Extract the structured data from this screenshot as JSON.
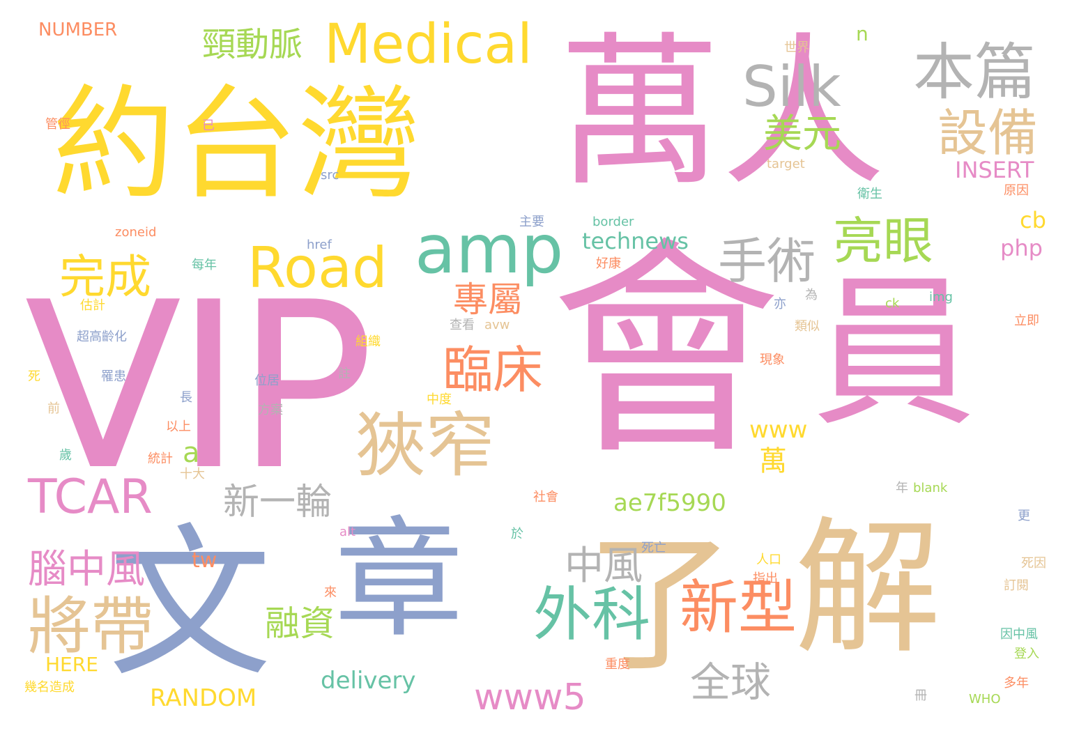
{
  "palette": {
    "pink": "#e68bc6",
    "yellow": "#ffd92f",
    "tan": "#e5c494",
    "blue": "#8da0cb",
    "green": "#66c2a5",
    "grey": "#b3b3b3",
    "orange": "#fc8d62",
    "lime": "#a6d854"
  },
  "words": {
    "vip": "VIP",
    "hui": "會",
    "yuan": "員",
    "wan_ren": "萬人",
    "yue_tai_wan": "約台灣",
    "wen": "文",
    "zhang": "章",
    "liao": "了",
    "jie": "解",
    "medical": "Medical",
    "silk": "Silk",
    "ben_pian": "本篇",
    "jing_dong_mai": "頸動脈",
    "road": "Road",
    "amp": "amp",
    "shou_shu": "手術",
    "liang_yan": "亮眼",
    "she_bei": "設備",
    "mei_yuan": "美元",
    "wan_cheng": "完成",
    "xia_zhai": "狹窄",
    "lin_chuang": "臨床",
    "zhuan_shu": "專屬",
    "tcar": "TCAR",
    "xin_yi_lun": "新一輪",
    "nao_zhong_feng": "腦中風",
    "jiang_dai": "將帶",
    "wai_ke": "外科",
    "xin_xing": "新型",
    "zhong_feng": "中風",
    "quan_qiu": "全球",
    "rong_zi": "融資",
    "www5": "www5",
    "delivery": "delivery",
    "random": "RANDOM",
    "here": "HERE",
    "ae7f5990": "ae7f5990",
    "www": "www",
    "wan": "萬",
    "a": "a",
    "technews": "technews",
    "tw": "tw",
    "cb": "cb",
    "php": "php",
    "insert": "INSERT",
    "number": "NUMBER",
    "n": "n",
    "shi_jie": "世界",
    "target": "target",
    "src": "src",
    "zoneid": "zoneid",
    "guan_jing": "管徑",
    "yi_1": "已",
    "wei_sheng": "衛生",
    "yuan_yin": "原因",
    "zhu_yao": "主要",
    "border": "border",
    "href": "href",
    "mei_nian": "每年",
    "hao_kang": "好康",
    "gu_ji": "估計",
    "ck": "ck",
    "img": "img",
    "yi_2": "亦",
    "wei": "為",
    "lei_si": "類似",
    "li_ji": "立即",
    "cha_kan": "查看",
    "avw": "avw",
    "chao_gao_ling_hua": "超高齡化",
    "zu_zhi": "組織",
    "xian_xiang": "現象",
    "si": "死",
    "luo_huan": "罹患",
    "wei_ju": "位居",
    "zhu": "註",
    "zhong_du": "中度",
    "chang": "長",
    "qian": "前",
    "fang_an": "方案",
    "yi_shang": "以上",
    "sui": "歲",
    "tong_ji": "統計",
    "shi_da": "十大",
    "nian": "年",
    "blank": "blank",
    "she_hui": "社會",
    "geng": "更",
    "alt": "alt",
    "yu": "於",
    "si_wang": "死亡",
    "ren_kou": "人口",
    "si_yin": "死因",
    "zhi_chu": "指出",
    "lai": "來",
    "ding_yue": "訂閱",
    "yin_zhong_feng": "因中風",
    "deng_ru": "登入",
    "zhong_du_2": "重度",
    "ji_ming_zao_cheng": "幾名造成",
    "duo_nian": "多年",
    "ce": "冊",
    "who": "WHO"
  }
}
